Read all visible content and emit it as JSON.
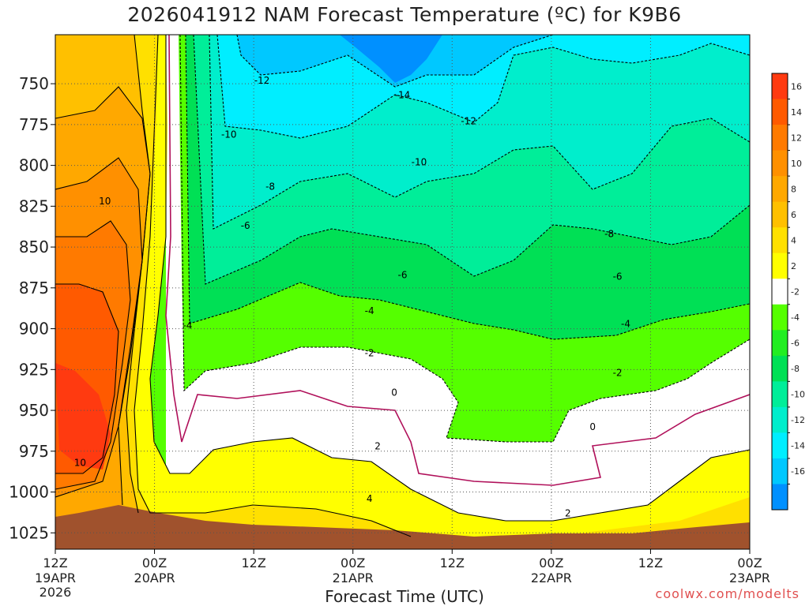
{
  "title": "2026041912 NAM Forecast Temperature (ºC) for K9B6",
  "credit": "coolwx.com/modelts",
  "chart_data": {
    "type": "contour",
    "xlabel": "Forecast Time (UTC)",
    "ylabel": "",
    "y_axis": {
      "range": [
        720,
        1035
      ],
      "inverted": true,
      "ticks": [
        750,
        775,
        800,
        825,
        850,
        875,
        900,
        925,
        950,
        975,
        1000,
        1025
      ]
    },
    "x_axis": {
      "range_hours": [
        0,
        84
      ],
      "ticks": [
        {
          "hour": 0,
          "label": "12Z",
          "date": "19APR",
          "year": "2026"
        },
        {
          "hour": 12,
          "label": "00Z",
          "date": "20APR"
        },
        {
          "hour": 24,
          "label": "12Z"
        },
        {
          "hour": 36,
          "label": "00Z",
          "date": "21APR"
        },
        {
          "hour": 48,
          "label": "12Z"
        },
        {
          "hour": 60,
          "label": "00Z",
          "date": "22APR"
        },
        {
          "hour": 72,
          "label": "12Z"
        },
        {
          "hour": 84,
          "label": "00Z",
          "date": "23APR"
        }
      ]
    },
    "grid": true,
    "colorbar": {
      "position": "right",
      "labels": [
        "16",
        "14",
        "12",
        "10",
        "8",
        "6",
        "4",
        "2",
        "-2",
        "-4",
        "-6",
        "-8",
        "-10",
        "-12",
        "-14",
        "-16"
      ],
      "colors": [
        "#ff3a10",
        "#ff5a00",
        "#ff7a00",
        "#ff9000",
        "#ffa800",
        "#ffc000",
        "#ffe000",
        "#ffff00",
        "#ffffff",
        "#55ff00",
        "#22ee22",
        "#00e055",
        "#00ee99",
        "#00eecc",
        "#00eeff",
        "#00c8ff",
        "#0090ff"
      ]
    },
    "contour_labels": [
      {
        "value": "-14",
        "hour": 42,
        "p": 757
      },
      {
        "value": "-12",
        "hour": 25,
        "p": 748
      },
      {
        "value": "-12",
        "hour": 50,
        "p": 773
      },
      {
        "value": "-10",
        "hour": 21,
        "p": 781
      },
      {
        "value": "-10",
        "hour": 44,
        "p": 798
      },
      {
        "value": "-8",
        "hour": 26,
        "p": 813
      },
      {
        "value": "-8",
        "hour": 67,
        "p": 842
      },
      {
        "value": "-6",
        "hour": 23,
        "p": 837
      },
      {
        "value": "-6",
        "hour": 42,
        "p": 867
      },
      {
        "value": "-6",
        "hour": 68,
        "p": 868
      },
      {
        "value": "-4",
        "hour": 16,
        "p": 898
      },
      {
        "value": "-4",
        "hour": 38,
        "p": 889
      },
      {
        "value": "-4",
        "hour": 69,
        "p": 897
      },
      {
        "value": "-2",
        "hour": 38,
        "p": 915
      },
      {
        "value": "-2",
        "hour": 68,
        "p": 927
      },
      {
        "value": "0",
        "hour": 41,
        "p": 939
      },
      {
        "value": "0",
        "hour": 65,
        "p": 960
      },
      {
        "value": "2",
        "hour": 39,
        "p": 972
      },
      {
        "value": "2",
        "hour": 62,
        "p": 1013
      },
      {
        "value": "4",
        "hour": 38,
        "p": 1004
      },
      {
        "value": "10",
        "hour": 6,
        "p": 822
      },
      {
        "value": "10",
        "hour": 3,
        "p": 982
      }
    ]
  }
}
